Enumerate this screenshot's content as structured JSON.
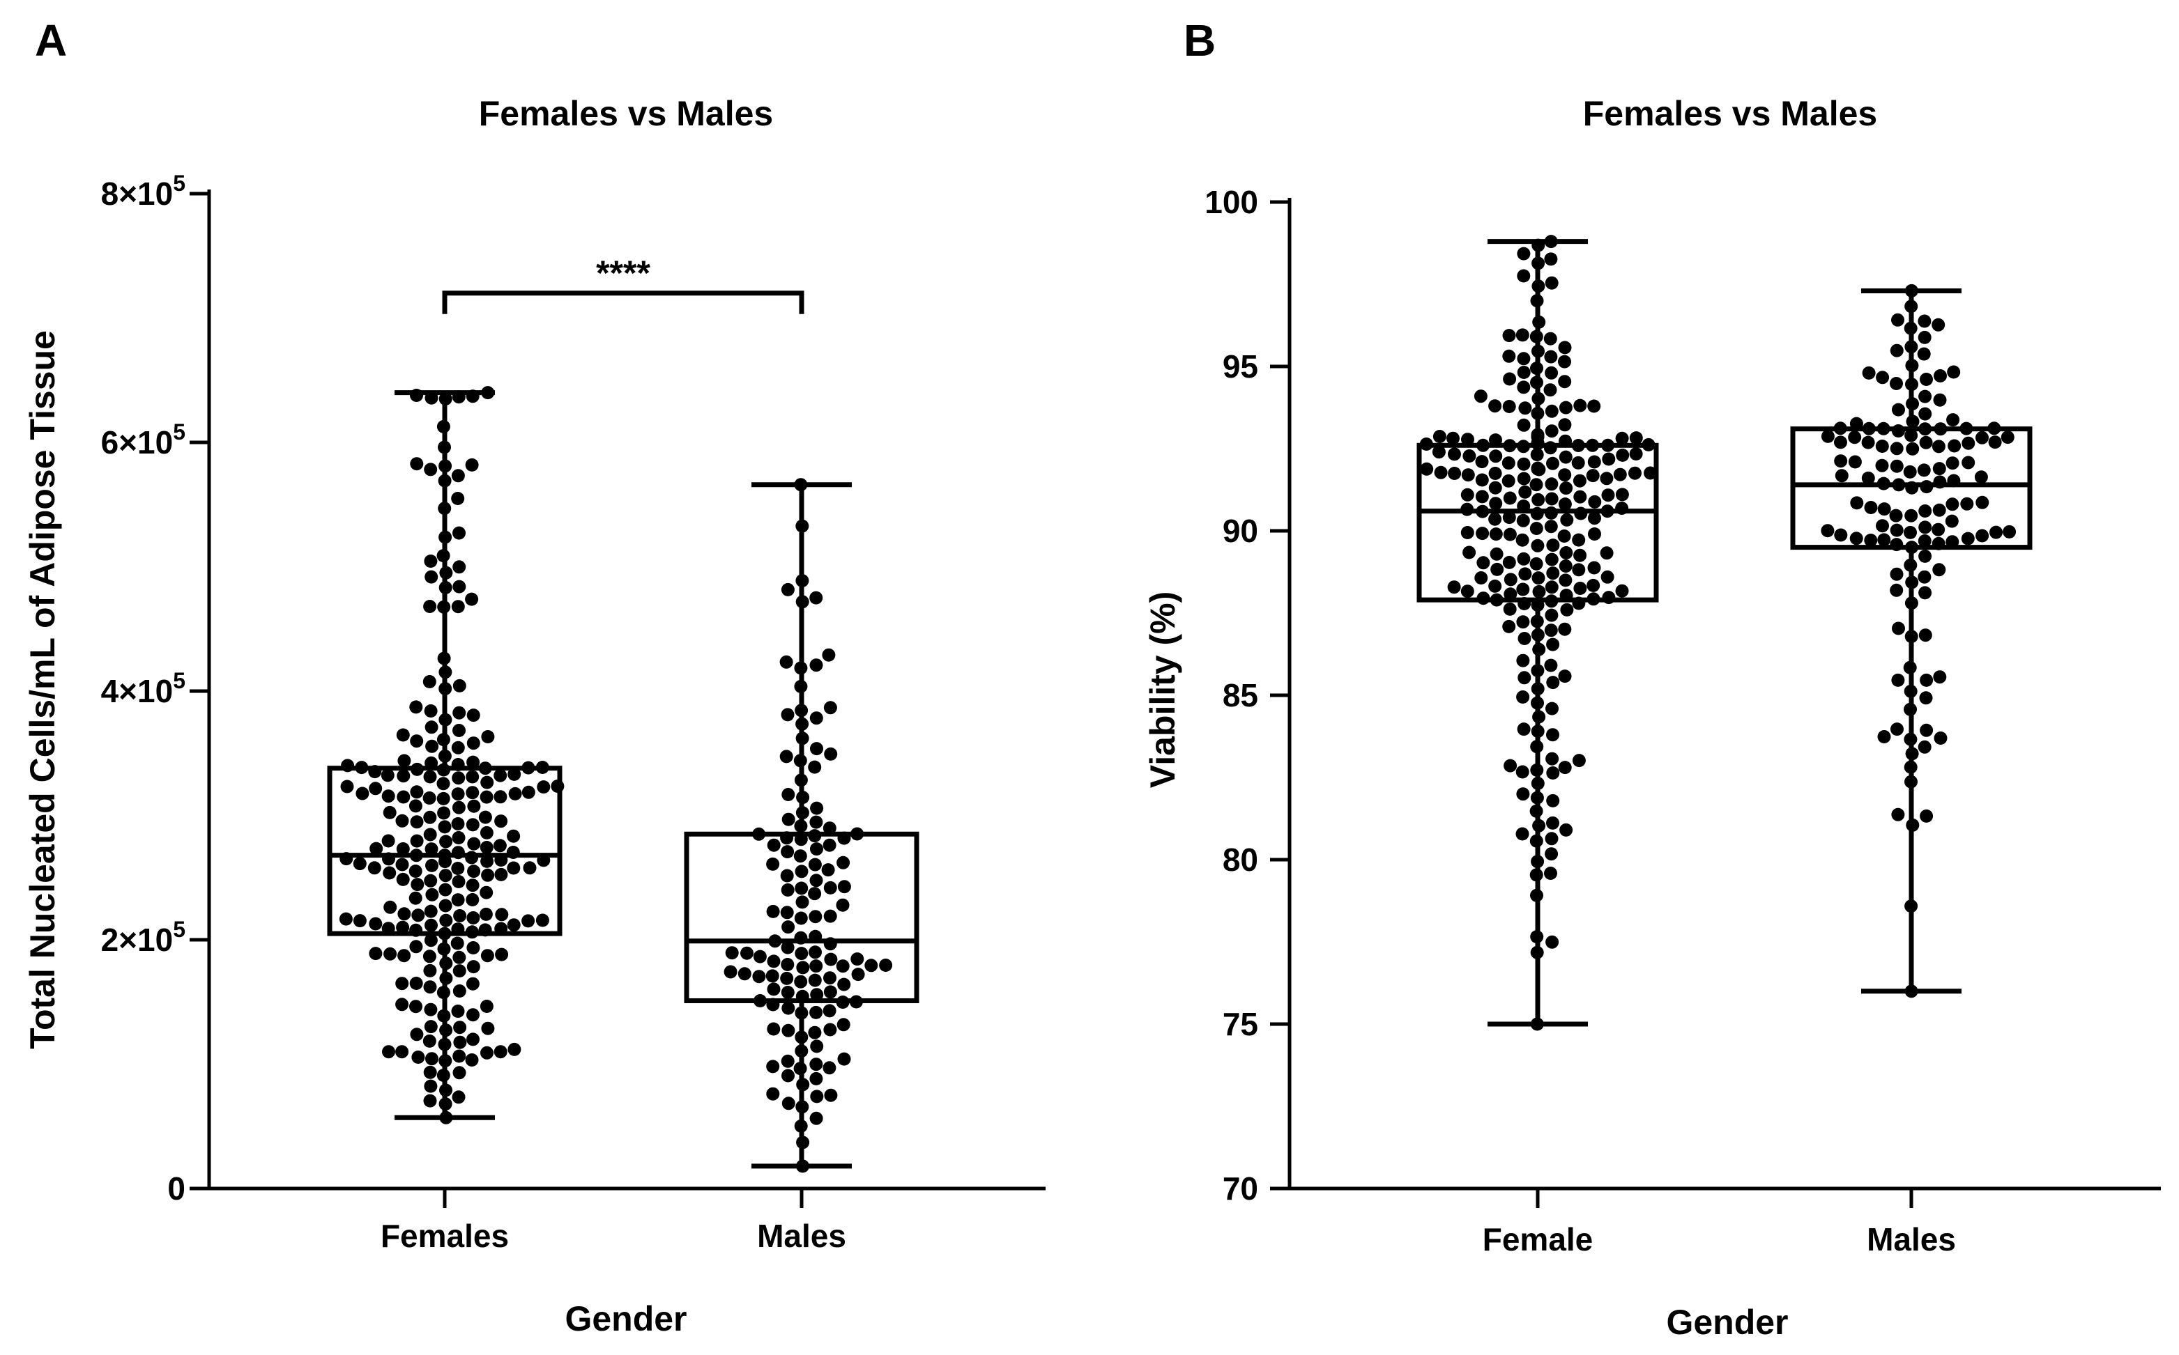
{
  "panels": [
    {
      "letter": "A",
      "title": "Females vs Males",
      "xlabel": "Gender",
      "ylabel": "Total Nucleated Cells/mL of Adipose Tissue",
      "significance": "****"
    },
    {
      "letter": "B",
      "title": "Females vs Males",
      "xlabel": "Gender",
      "ylabel": "Viability (%)"
    }
  ],
  "chart_data": [
    {
      "type": "box",
      "title": "Females vs Males",
      "xlabel": "Gender",
      "ylabel": "Total Nucleated Cells/mL of Adipose Tissue",
      "ylim": [
        0,
        800000
      ],
      "yticks": [
        0,
        200000,
        400000,
        600000,
        800000
      ],
      "ytick_labels": [
        {
          "text": "0",
          "sup": ""
        },
        {
          "text": "2×10",
          "sup": "5"
        },
        {
          "text": "4×10",
          "sup": "5"
        },
        {
          "text": "6×10",
          "sup": "5"
        },
        {
          "text": "8×10",
          "sup": "5"
        }
      ],
      "categories": [
        "Females",
        "Males"
      ],
      "boxes": [
        {
          "name": "Females",
          "min": 57000,
          "q1": 205000,
          "median": 268000,
          "q3": 338000,
          "max": 640000,
          "n": 230
        },
        {
          "name": "Males",
          "min": 18000,
          "q1": 151000,
          "median": 199000,
          "q3": 285000,
          "max": 566000,
          "n": 130
        }
      ],
      "annotations": [
        {
          "text": "****",
          "between": [
            "Females",
            "Males"
          ],
          "y": 720000
        }
      ],
      "grid": false
    },
    {
      "type": "box",
      "title": "Females vs Males",
      "xlabel": "Gender",
      "ylabel": "Viability (%)",
      "ylim": [
        70,
        100
      ],
      "yticks": [
        70,
        75,
        80,
        85,
        90,
        95,
        100
      ],
      "ytick_labels": [
        {
          "text": "70",
          "sup": ""
        },
        {
          "text": "75",
          "sup": ""
        },
        {
          "text": "80",
          "sup": ""
        },
        {
          "text": "85",
          "sup": ""
        },
        {
          "text": "90",
          "sup": ""
        },
        {
          "text": "95",
          "sup": ""
        },
        {
          "text": "100",
          "sup": ""
        }
      ],
      "categories": [
        "Female",
        "Males"
      ],
      "boxes": [
        {
          "name": "Female",
          "min": 75.0,
          "q1": 87.9,
          "median": 90.6,
          "q3": 92.6,
          "max": 98.8,
          "n": 230
        },
        {
          "name": "Males",
          "min": 76.0,
          "q1": 89.5,
          "median": 91.4,
          "q3": 93.1,
          "max": 97.3,
          "n": 130
        }
      ],
      "grid": false
    }
  ]
}
